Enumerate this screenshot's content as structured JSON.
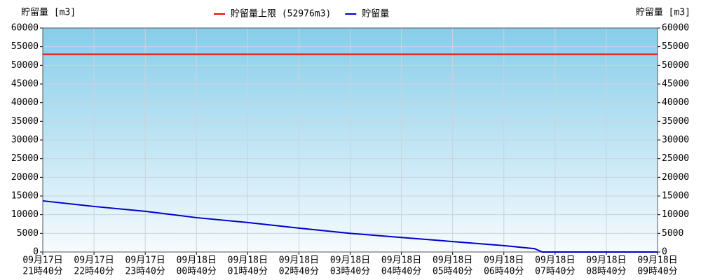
{
  "chart_data": {
    "type": "line",
    "ylabel": "貯留量 [m3]",
    "ylim": [
      0,
      60000
    ],
    "yticks": [
      0,
      5000,
      10000,
      15000,
      20000,
      25000,
      30000,
      35000,
      40000,
      45000,
      50000,
      55000,
      60000
    ],
    "xlim": [
      0,
      12
    ],
    "xticks": [
      {
        "value": 0,
        "date": "09月17日",
        "time": "21時40分"
      },
      {
        "value": 1,
        "date": "09月17日",
        "time": "22時40分"
      },
      {
        "value": 2,
        "date": "09月17日",
        "time": "23時40分"
      },
      {
        "value": 3,
        "date": "09月18日",
        "time": "00時40分"
      },
      {
        "value": 4,
        "date": "09月18日",
        "time": "01時40分"
      },
      {
        "value": 5,
        "date": "09月18日",
        "time": "02時40分"
      },
      {
        "value": 6,
        "date": "09月18日",
        "time": "03時40分"
      },
      {
        "value": 7,
        "date": "09月18日",
        "time": "04時40分"
      },
      {
        "value": 8,
        "date": "09月18日",
        "time": "05時40分"
      },
      {
        "value": 9,
        "date": "09月18日",
        "time": "06時40分"
      },
      {
        "value": 10,
        "date": "09月18日",
        "time": "07時40分"
      },
      {
        "value": 11,
        "date": "09月18日",
        "time": "08時40分"
      },
      {
        "value": 12,
        "date": "09月18日",
        "time": "09時40分"
      }
    ],
    "grid": true,
    "legend": "top",
    "series": [
      {
        "name": "貯留量上限 (52976m3)",
        "color": "#ff0000",
        "x": [
          0,
          12
        ],
        "values": [
          52976,
          52976
        ]
      },
      {
        "name": "貯留量",
        "color": "#0000cc",
        "x": [
          0,
          1,
          2,
          3,
          4,
          5,
          6,
          7,
          8,
          9,
          9.6,
          9.75,
          12
        ],
        "values": [
          13700,
          12200,
          10900,
          9200,
          7900,
          6400,
          5000,
          3900,
          2800,
          1700,
          900,
          0,
          0
        ]
      }
    ]
  }
}
